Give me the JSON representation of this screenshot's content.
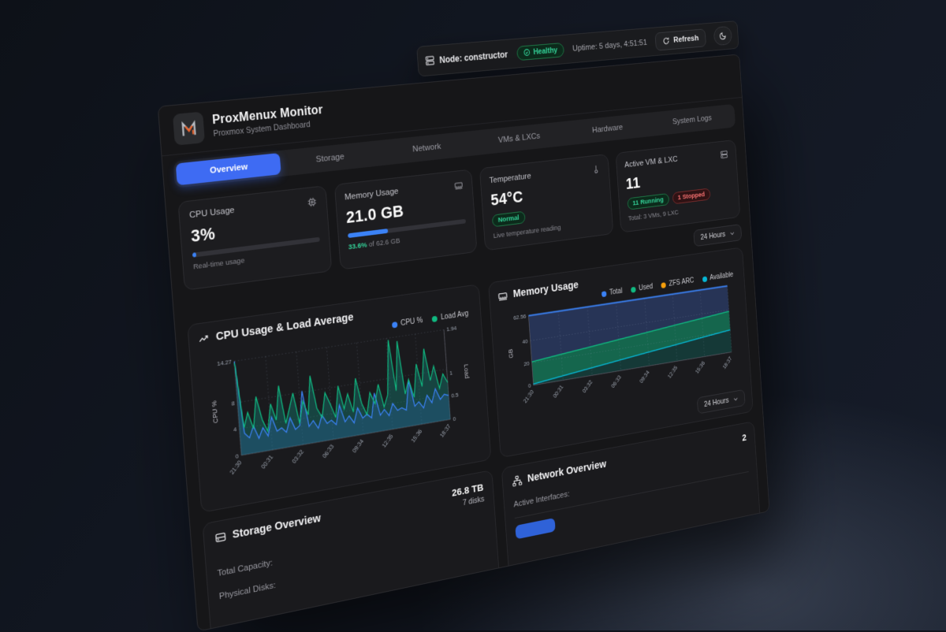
{
  "colors": {
    "accent_blue": "#3b82f6",
    "active_tab_blue": "#3e6bf3",
    "green": "#10b981",
    "orange": "#f59e0b",
    "cyan": "#06b6d4",
    "red": "#ef4444"
  },
  "status_bar": {
    "node_label": "Node: constructor",
    "health_label": "Healthy",
    "uptime_label": "Uptime: 5 days, 4:51:51",
    "refresh_label": "Refresh"
  },
  "header": {
    "title": "ProxMenux Monitor",
    "subtitle": "Proxmox System Dashboard"
  },
  "tabs": [
    {
      "label": "Overview",
      "active": true
    },
    {
      "label": "Storage",
      "active": false
    },
    {
      "label": "Network",
      "active": false
    },
    {
      "label": "VMs & LXCs",
      "active": false
    },
    {
      "label": "Hardware",
      "active": false
    },
    {
      "label": "System Logs",
      "active": false
    }
  ],
  "time_range": {
    "selected": "24 Hours"
  },
  "stat_cards": {
    "cpu": {
      "title": "CPU Usage",
      "value": "3%",
      "percent": 3,
      "caption": "Real-time usage"
    },
    "memory": {
      "title": "Memory Usage",
      "value": "21.0 GB",
      "percent": 33.6,
      "used_percent_text": "33.6%",
      "of_text": " of 62.6 GB"
    },
    "temperature": {
      "title": "Temperature",
      "value": "54°C",
      "status_badge": "Normal",
      "caption": "Live temperature reading"
    },
    "vms": {
      "title": "Active VM & LXC",
      "value": "11",
      "running_badge": "11 Running",
      "stopped_badge": "1 Stopped",
      "caption": "Total: 3 VMs, 9 LXC"
    }
  },
  "chart_data": [
    {
      "id": "cpu_load",
      "type": "line",
      "title": "CPU Usage & Load Average",
      "legend": [
        {
          "label": "CPU %",
          "color": "#3b82f6"
        },
        {
          "label": "Load Avg",
          "color": "#10b981"
        }
      ],
      "x_labels": [
        "21:30",
        "00:31",
        "03:32",
        "06:33",
        "09:34",
        "12:35",
        "15:36",
        "18:37"
      ],
      "y_left": {
        "label": "CPU %",
        "ticks": [
          14.27,
          8,
          4,
          0
        ],
        "max": 14.27
      },
      "y_right": {
        "label": "Load",
        "ticks": [
          1.94,
          1,
          0.5,
          0
        ],
        "max": 1.94
      },
      "series": [
        {
          "name": "CPU %",
          "axis": "left",
          "color": "#3b82f6",
          "values": [
            14.2,
            3.2,
            2.4,
            4.1,
            2.1,
            3.6,
            2.2,
            5.0,
            2.7,
            3.1,
            2.3,
            4.4,
            2.5,
            3.0,
            8.2,
            2.6,
            3.4,
            2.1,
            4.0,
            2.6,
            3.0,
            2.2,
            5.1,
            2.4,
            3.2,
            2.0,
            4.2,
            2.5,
            3.0,
            2.3,
            6.1,
            2.5,
            3.3,
            2.2,
            4.0,
            2.8,
            3.1,
            2.6,
            7.2,
            3.0,
            3.6,
            2.5,
            4.4,
            3.1,
            5.2,
            3.4,
            4.1,
            3.8
          ]
        },
        {
          "name": "Load Avg",
          "axis": "right",
          "color": "#10b981",
          "values": [
            1.9,
            0.55,
            0.85,
            0.5,
            1.15,
            0.65,
            0.4,
            0.95,
            0.6,
            1.3,
            0.5,
            0.8,
            1.1,
            0.45,
            0.9,
            0.6,
            1.4,
            0.7,
            0.5,
            1.0,
            0.75,
            0.45,
            1.1,
            0.6,
            0.9,
            0.5,
            1.2,
            0.65,
            0.4,
            0.85,
            0.6,
            1.0,
            0.5,
            0.75,
            1.9,
            0.8,
            1.85,
            0.7,
            1.0,
            0.6,
            1.3,
            0.8,
            1.6,
            0.9,
            1.2,
            0.7,
            1.0,
            0.8
          ]
        }
      ]
    },
    {
      "id": "memory",
      "type": "area",
      "title": "Memory Usage",
      "legend": [
        {
          "label": "Total",
          "color": "#3b82f6"
        },
        {
          "label": "Used",
          "color": "#10b981"
        },
        {
          "label": "ZFS ARC",
          "color": "#f59e0b"
        },
        {
          "label": "Available",
          "color": "#06b6d4"
        }
      ],
      "x_labels": [
        "21:30",
        "00:31",
        "03:32",
        "06:33",
        "09:34",
        "12:35",
        "15:36",
        "18:37"
      ],
      "y": {
        "label": "GB",
        "ticks": [
          62.56,
          40,
          20,
          0
        ],
        "max": 62.56
      },
      "series": [
        {
          "name": "Total",
          "color": "#3b82f6",
          "values": [
            62.56,
            62.56,
            62.56,
            62.56,
            62.56,
            62.56,
            62.56,
            62.56
          ]
        },
        {
          "name": "Used",
          "color": "#10b981",
          "values": [
            21.0,
            23.5,
            26.0,
            28.5,
            31.0,
            33.5,
            36.0,
            38.5
          ]
        },
        {
          "name": "Available",
          "color": "#06b6d4",
          "values": [
            1.0,
            3.9,
            6.8,
            9.7,
            12.6,
            15.4,
            18.2,
            21.0
          ]
        }
      ]
    }
  ],
  "storage": {
    "title": "Storage Overview",
    "capacity_label": "Total Capacity:",
    "capacity_value": "26.8 TB",
    "disks_label": "Physical Disks:",
    "disks_value": "7 disks"
  },
  "network": {
    "title": "Network Overview",
    "interfaces_label": "Active Interfaces:",
    "interfaces_value": "2"
  }
}
